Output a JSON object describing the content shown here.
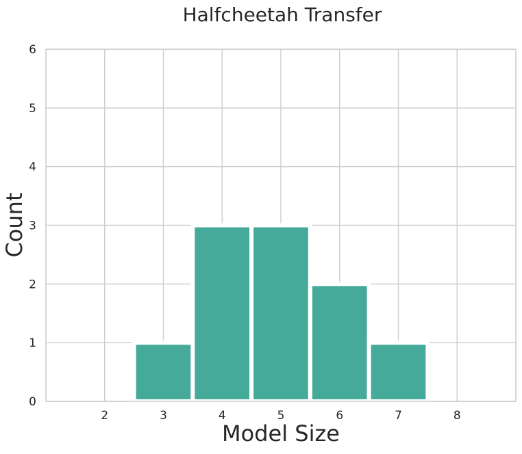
{
  "chart_data": {
    "type": "bar",
    "title": "Halfcheetah Transfer",
    "xlabel": "Model Size",
    "ylabel": "Count",
    "categories": [
      "3",
      "4",
      "5",
      "6",
      "7"
    ],
    "values": [
      1,
      3,
      3,
      2,
      1
    ],
    "x_values": [
      3,
      4,
      5,
      6,
      7
    ],
    "xticks": [
      2,
      3,
      4,
      5,
      6,
      7,
      8
    ],
    "yticks": [
      0,
      1,
      2,
      3,
      4,
      5,
      6
    ],
    "xlim": [
      1,
      9
    ],
    "ylim": [
      0,
      6
    ],
    "grid": true,
    "legend": "none",
    "colors": {
      "bar": "#46aa9a",
      "grid": "#cfcfcf",
      "frame": "#cccccc",
      "text": "#262626"
    }
  }
}
